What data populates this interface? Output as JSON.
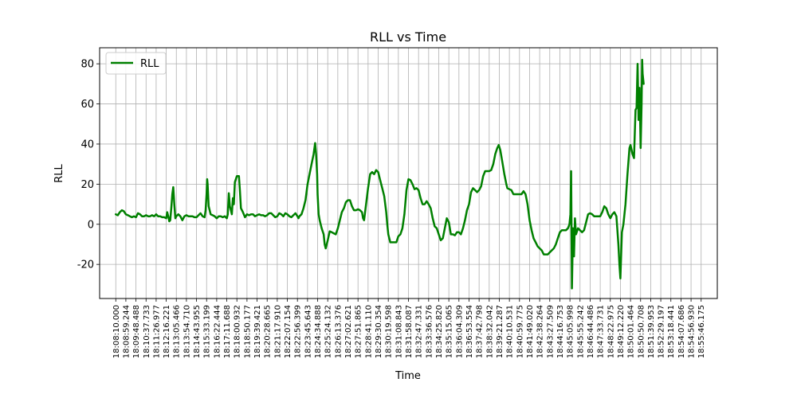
{
  "chart_data": {
    "type": "line",
    "title": "RLL vs Time",
    "xlabel": "Time",
    "ylabel": "RLL",
    "ylim": [
      -37,
      88
    ],
    "yticks": [
      -20,
      0,
      20,
      40,
      60,
      80
    ],
    "grid": true,
    "legend": "top-left",
    "line_color": "#008000",
    "x_tick_labels": [
      "18:08:10.000",
      "18:08:59.244",
      "18:09:48.488",
      "18:10:37.733",
      "18:11:26.977",
      "18:12:16.221",
      "18:13:05.466",
      "18:13:54.710",
      "18:14:43.955",
      "18:15:33.199",
      "18:16:22.444",
      "18:17:11.688",
      "18:18:00.932",
      "18:18:50.177",
      "18:19:39.421",
      "18:20:28.665",
      "18:21:17.910",
      "18:22:07.154",
      "18:22:56.399",
      "18:23:45.643",
      "18:24:34.888",
      "18:25:24.132",
      "18:26:13.376",
      "18:27:02.621",
      "18:27:51.865",
      "18:28:41.110",
      "18:29:30.354",
      "18:30:19.598",
      "18:31:08.843",
      "18:31:58.087",
      "18:32:47.331",
      "18:33:36.576",
      "18:34:25.820",
      "18:35:15.065",
      "18:36:04.309",
      "18:36:53.554",
      "18:37:42.798",
      "18:38:32.042",
      "18:39:21.287",
      "18:40:10.531",
      "18:40:59.775",
      "18:41:49.020",
      "18:42:38.264",
      "18:43:27.509",
      "18:44:16.753",
      "18:45:05.998",
      "18:45:55.242",
      "18:46:44.486",
      "18:47:33.731",
      "18:48:22.975",
      "18:49:12.220",
      "18:50:01.464",
      "18:50:50.708",
      "18:51:39.953",
      "18:52:29.197",
      "18:53:18.441",
      "18:54:07.686",
      "18:54:56.930",
      "18:55:46.175"
    ],
    "series": [
      {
        "name": "RLL",
        "points": [
          [
            0,
            5
          ],
          [
            0.2,
            4.5
          ],
          [
            0.4,
            6
          ],
          [
            0.6,
            7
          ],
          [
            0.8,
            6.5
          ],
          [
            1,
            5
          ],
          [
            1.2,
            4.5
          ],
          [
            1.4,
            4
          ],
          [
            1.6,
            3.5
          ],
          [
            1.8,
            4
          ],
          [
            2,
            3.5
          ],
          [
            2.2,
            5.5
          ],
          [
            2.4,
            5
          ],
          [
            2.6,
            4
          ],
          [
            2.8,
            4
          ],
          [
            3,
            4.5
          ],
          [
            3.2,
            4
          ],
          [
            3.4,
            4
          ],
          [
            3.6,
            4.5
          ],
          [
            3.8,
            4
          ],
          [
            4,
            5
          ],
          [
            4.2,
            4
          ],
          [
            4.4,
            4
          ],
          [
            4.6,
            3.5
          ],
          [
            4.8,
            3.5
          ],
          [
            5,
            3
          ],
          [
            5.1,
            6
          ],
          [
            5.2,
            4
          ],
          [
            5.3,
            1.5
          ],
          [
            5.4,
            2
          ],
          [
            5.5,
            8
          ],
          [
            5.6,
            15
          ],
          [
            5.7,
            18.5
          ],
          [
            5.8,
            10
          ],
          [
            5.9,
            3
          ],
          [
            6,
            4
          ],
          [
            6.2,
            5
          ],
          [
            6.4,
            4
          ],
          [
            6.6,
            2
          ],
          [
            6.8,
            4
          ],
          [
            7,
            4.5
          ],
          [
            7.2,
            4
          ],
          [
            7.4,
            4
          ],
          [
            7.6,
            4
          ],
          [
            7.8,
            3.5
          ],
          [
            8,
            3.5
          ],
          [
            8.2,
            4.5
          ],
          [
            8.4,
            5.5
          ],
          [
            8.6,
            4
          ],
          [
            8.8,
            3.5
          ],
          [
            8.9,
            7
          ],
          [
            9,
            15
          ],
          [
            9.05,
            22.5
          ],
          [
            9.1,
            20
          ],
          [
            9.2,
            9
          ],
          [
            9.4,
            5
          ],
          [
            9.6,
            4.5
          ],
          [
            9.8,
            4
          ],
          [
            10,
            3
          ],
          [
            10.2,
            4
          ],
          [
            10.4,
            4
          ],
          [
            10.6,
            3.5
          ],
          [
            10.8,
            4
          ],
          [
            11,
            3
          ],
          [
            11.1,
            5
          ],
          [
            11.2,
            15.5
          ],
          [
            11.3,
            9
          ],
          [
            11.5,
            5
          ],
          [
            11.6,
            13
          ],
          [
            11.7,
            10
          ],
          [
            11.8,
            21
          ],
          [
            12,
            24
          ],
          [
            12.2,
            24
          ],
          [
            12.3,
            17
          ],
          [
            12.4,
            8
          ],
          [
            12.6,
            6
          ],
          [
            12.8,
            3.5
          ],
          [
            13,
            5
          ],
          [
            13.2,
            4.5
          ],
          [
            13.4,
            5
          ],
          [
            13.6,
            5
          ],
          [
            13.8,
            4
          ],
          [
            14,
            4.5
          ],
          [
            14.2,
            5
          ],
          [
            14.4,
            4.5
          ],
          [
            14.6,
            4.5
          ],
          [
            14.8,
            4
          ],
          [
            15,
            4.5
          ],
          [
            15.2,
            5.5
          ],
          [
            15.4,
            5.5
          ],
          [
            15.6,
            4.5
          ],
          [
            15.8,
            3.5
          ],
          [
            16,
            4
          ],
          [
            16.2,
            5.5
          ],
          [
            16.4,
            5
          ],
          [
            16.6,
            4
          ],
          [
            16.8,
            5.5
          ],
          [
            17,
            5
          ],
          [
            17.2,
            4
          ],
          [
            17.4,
            3.5
          ],
          [
            17.6,
            4.5
          ],
          [
            17.8,
            5.5
          ],
          [
            18,
            4
          ],
          [
            18.1,
            3
          ],
          [
            18.2,
            4
          ],
          [
            18.4,
            5
          ],
          [
            18.6,
            8
          ],
          [
            18.8,
            12
          ],
          [
            19,
            20
          ],
          [
            19.2,
            25
          ],
          [
            19.4,
            30
          ],
          [
            19.6,
            35
          ],
          [
            19.75,
            40.5
          ],
          [
            19.85,
            35
          ],
          [
            19.95,
            25
          ],
          [
            20,
            15
          ],
          [
            20.1,
            5
          ],
          [
            20.2,
            2
          ],
          [
            20.4,
            -2
          ],
          [
            20.6,
            -5
          ],
          [
            20.7,
            -10
          ],
          [
            20.8,
            -12
          ],
          [
            21,
            -8
          ],
          [
            21.2,
            -3.5
          ],
          [
            21.4,
            -4
          ],
          [
            21.6,
            -4.5
          ],
          [
            21.8,
            -5
          ],
          [
            22,
            -2
          ],
          [
            22.2,
            2
          ],
          [
            22.4,
            6
          ],
          [
            22.6,
            8
          ],
          [
            22.8,
            11
          ],
          [
            23,
            12
          ],
          [
            23.2,
            12
          ],
          [
            23.4,
            9
          ],
          [
            23.6,
            7
          ],
          [
            23.8,
            7
          ],
          [
            24,
            7.5
          ],
          [
            24.2,
            7
          ],
          [
            24.4,
            6
          ],
          [
            24.5,
            3
          ],
          [
            24.6,
            2
          ],
          [
            24.8,
            10
          ],
          [
            25,
            18
          ],
          [
            25.2,
            25
          ],
          [
            25.4,
            26
          ],
          [
            25.6,
            25
          ],
          [
            25.8,
            27
          ],
          [
            26,
            26
          ],
          [
            26.2,
            22
          ],
          [
            26.4,
            18
          ],
          [
            26.6,
            14
          ],
          [
            26.8,
            6
          ],
          [
            26.9,
            0
          ],
          [
            27,
            -5
          ],
          [
            27.2,
            -9
          ],
          [
            27.4,
            -9
          ],
          [
            27.6,
            -9
          ],
          [
            27.8,
            -9
          ],
          [
            28,
            -6
          ],
          [
            28.2,
            -5
          ],
          [
            28.4,
            -2
          ],
          [
            28.6,
            5
          ],
          [
            28.8,
            17
          ],
          [
            29,
            22.5
          ],
          [
            29.2,
            22
          ],
          [
            29.4,
            20
          ],
          [
            29.6,
            17.5
          ],
          [
            29.8,
            18
          ],
          [
            30,
            17
          ],
          [
            30.2,
            13
          ],
          [
            30.4,
            10
          ],
          [
            30.6,
            10
          ],
          [
            30.8,
            11.5
          ],
          [
            31,
            10
          ],
          [
            31.2,
            8
          ],
          [
            31.4,
            3
          ],
          [
            31.6,
            -1
          ],
          [
            31.8,
            -2
          ],
          [
            32,
            -5
          ],
          [
            32.2,
            -8
          ],
          [
            32.4,
            -7
          ],
          [
            32.6,
            -2
          ],
          [
            32.8,
            3
          ],
          [
            33,
            1
          ],
          [
            33.2,
            -5
          ],
          [
            33.4,
            -5
          ],
          [
            33.6,
            -5.5
          ],
          [
            33.8,
            -4
          ],
          [
            34,
            -4
          ],
          [
            34.2,
            -5
          ],
          [
            34.4,
            -2
          ],
          [
            34.6,
            2
          ],
          [
            34.8,
            7
          ],
          [
            35,
            10
          ],
          [
            35.2,
            16
          ],
          [
            35.4,
            18
          ],
          [
            35.6,
            17
          ],
          [
            35.8,
            16
          ],
          [
            36,
            17
          ],
          [
            36.2,
            19
          ],
          [
            36.4,
            24
          ],
          [
            36.6,
            26.5
          ],
          [
            36.8,
            26.5
          ],
          [
            37,
            26.5
          ],
          [
            37.2,
            27
          ],
          [
            37.4,
            30
          ],
          [
            37.6,
            35
          ],
          [
            37.8,
            38
          ],
          [
            37.95,
            39.5
          ],
          [
            38.1,
            37
          ],
          [
            38.3,
            31
          ],
          [
            38.5,
            25
          ],
          [
            38.7,
            20
          ],
          [
            38.8,
            18
          ],
          [
            39,
            17.5
          ],
          [
            39.2,
            17
          ],
          [
            39.4,
            15
          ],
          [
            39.6,
            15
          ],
          [
            39.8,
            15
          ],
          [
            40,
            15
          ],
          [
            40.2,
            15
          ],
          [
            40.4,
            16.5
          ],
          [
            40.6,
            15
          ],
          [
            40.8,
            10
          ],
          [
            41,
            2
          ],
          [
            41.2,
            -3
          ],
          [
            41.4,
            -7
          ],
          [
            41.6,
            -9
          ],
          [
            41.8,
            -11
          ],
          [
            42,
            -12
          ],
          [
            42.2,
            -13
          ],
          [
            42.4,
            -15
          ],
          [
            42.6,
            -15
          ],
          [
            42.8,
            -15
          ],
          [
            43,
            -14
          ],
          [
            43.2,
            -13
          ],
          [
            43.4,
            -12
          ],
          [
            43.6,
            -10
          ],
          [
            43.8,
            -7
          ],
          [
            44,
            -4
          ],
          [
            44.2,
            -3
          ],
          [
            44.4,
            -3
          ],
          [
            44.6,
            -3
          ],
          [
            44.8,
            -2
          ],
          [
            44.95,
            0
          ],
          [
            45.05,
            5
          ],
          [
            45.12,
            26.5
          ],
          [
            45.2,
            -32
          ],
          [
            45.3,
            -2
          ],
          [
            45.4,
            -16
          ],
          [
            45.5,
            3
          ],
          [
            45.6,
            -5
          ],
          [
            45.8,
            -2
          ],
          [
            46,
            -3
          ],
          [
            46.2,
            -4
          ],
          [
            46.4,
            -3
          ],
          [
            46.6,
            1
          ],
          [
            46.8,
            5
          ],
          [
            47,
            5.5
          ],
          [
            47.2,
            5
          ],
          [
            47.4,
            4
          ],
          [
            47.6,
            4
          ],
          [
            47.8,
            4
          ],
          [
            48,
            4
          ],
          [
            48.2,
            6
          ],
          [
            48.4,
            9
          ],
          [
            48.6,
            8
          ],
          [
            48.8,
            5
          ],
          [
            49,
            3
          ],
          [
            49.2,
            5
          ],
          [
            49.4,
            6
          ],
          [
            49.6,
            4
          ],
          [
            49.8,
            -10
          ],
          [
            49.9,
            -20
          ],
          [
            50,
            -27
          ],
          [
            50.15,
            -4
          ],
          [
            50.3,
            0
          ],
          [
            50.5,
            10
          ],
          [
            50.7,
            25
          ],
          [
            50.9,
            38
          ],
          [
            51,
            39.5
          ],
          [
            51.2,
            35
          ],
          [
            51.35,
            33
          ],
          [
            51.5,
            57
          ],
          [
            51.6,
            58
          ],
          [
            51.7,
            80
          ],
          [
            51.8,
            52
          ],
          [
            51.9,
            68
          ],
          [
            52,
            38
          ],
          [
            52.1,
            60
          ],
          [
            52.15,
            82
          ],
          [
            52.2,
            75
          ],
          [
            52.3,
            70
          ]
        ]
      }
    ]
  }
}
